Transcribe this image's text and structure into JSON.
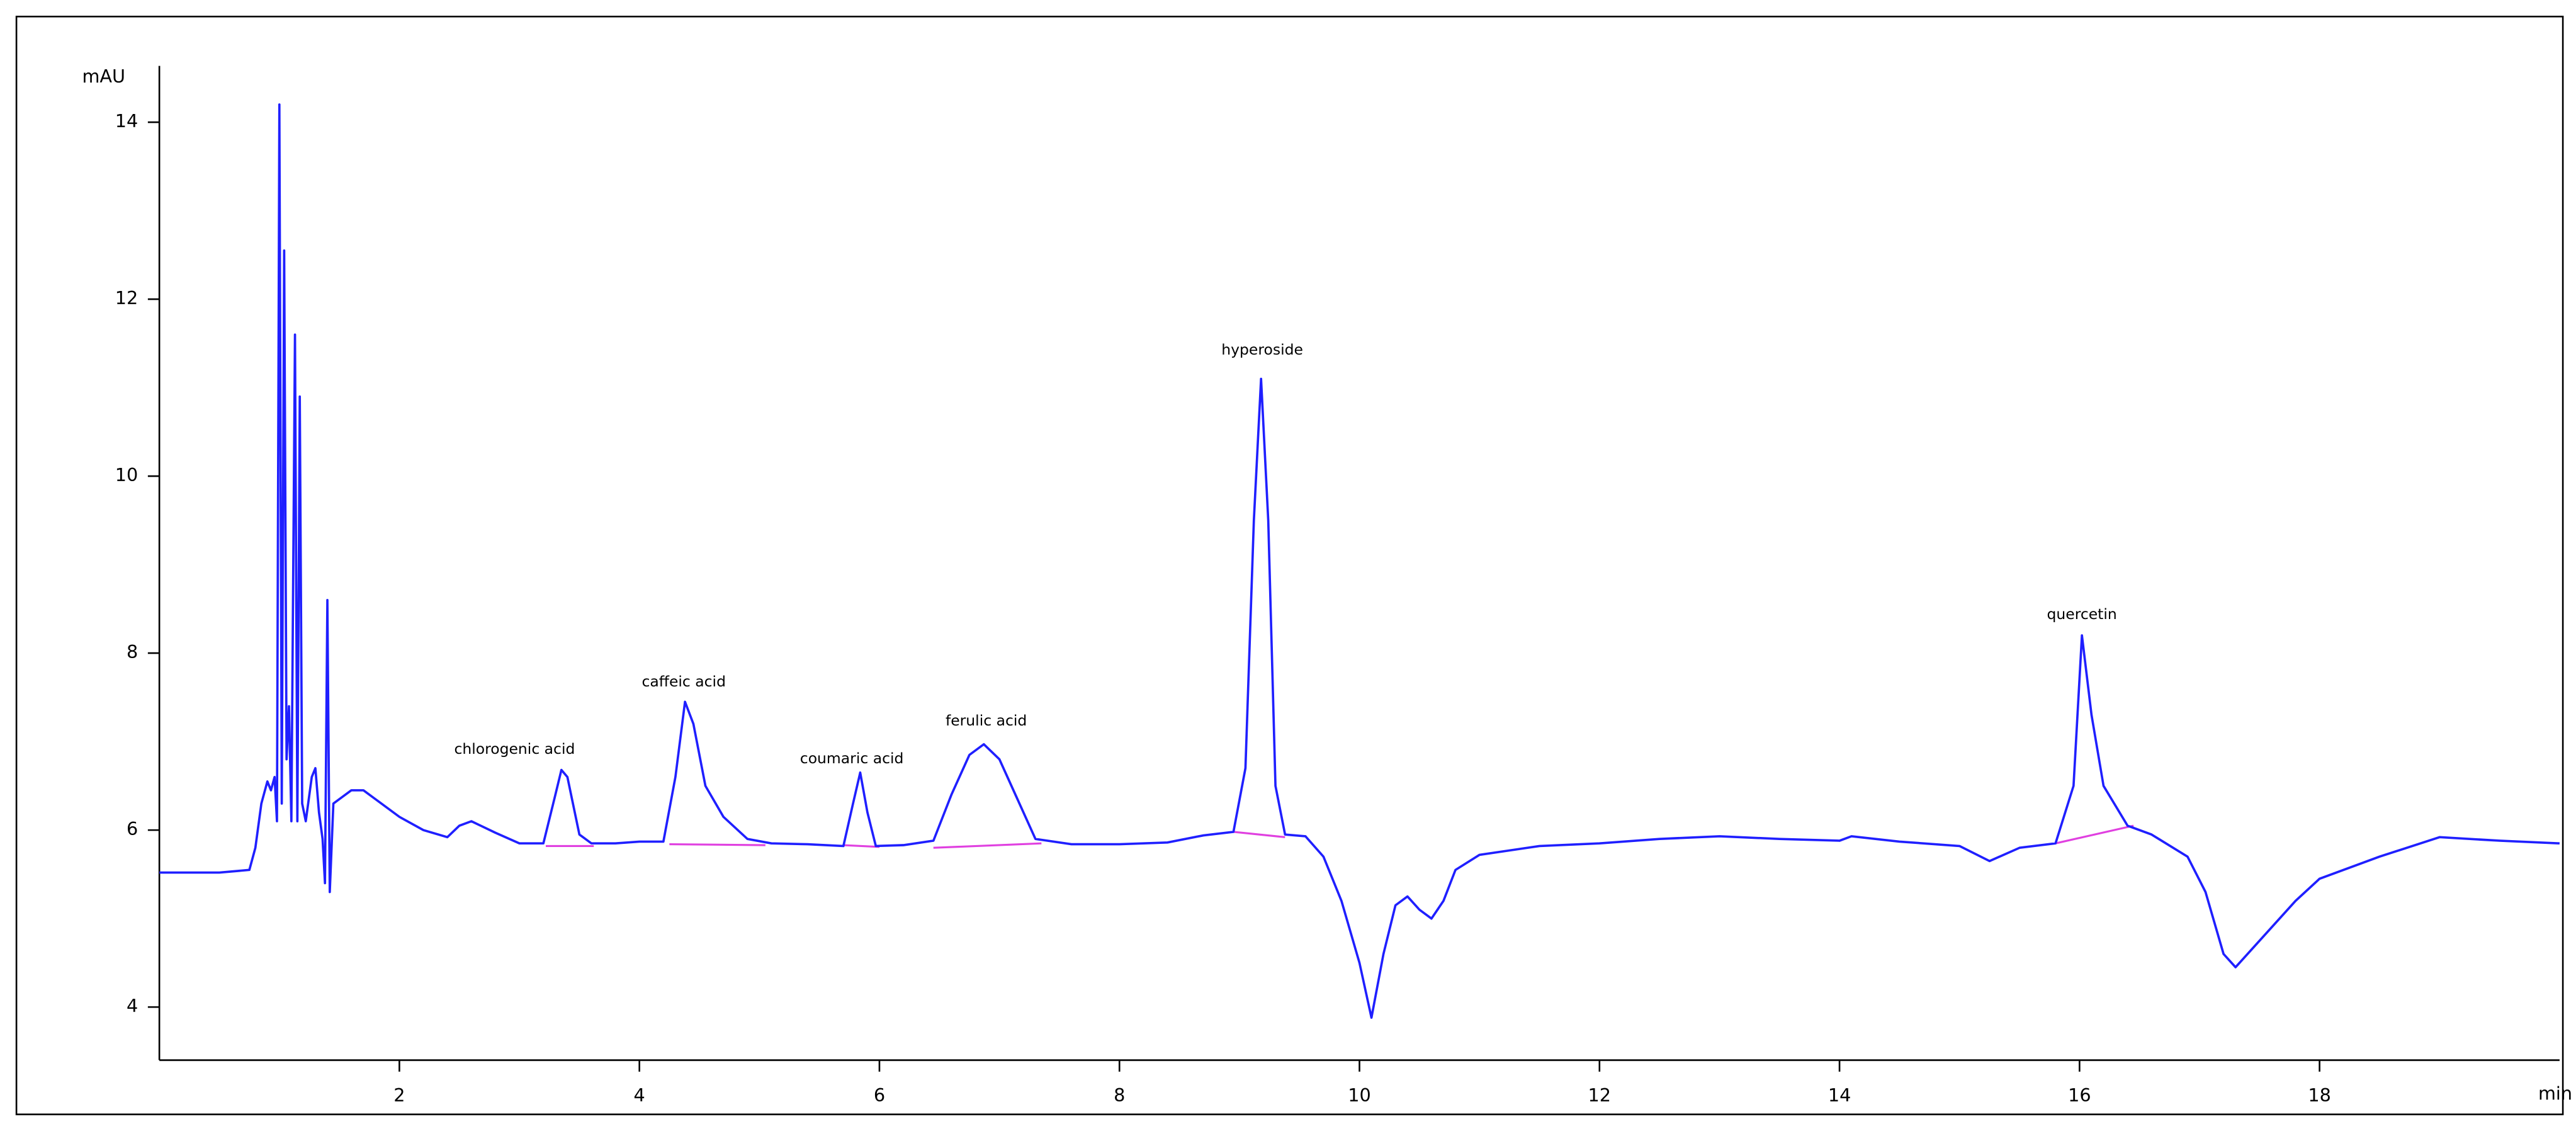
{
  "chart_data": {
    "type": "line",
    "y_label": "mAU",
    "x_label": "min",
    "color": "#1f1fff",
    "baseline_color": "#e040e0",
    "xlim": [
      0,
      20
    ],
    "ylim": [
      3.4,
      14.6
    ],
    "xticks": [
      2,
      4,
      6,
      8,
      10,
      12,
      14,
      16,
      18
    ],
    "yticks": [
      4,
      6,
      8,
      10,
      12,
      14
    ],
    "x": [
      0,
      0.5,
      0.75,
      0.8,
      0.85,
      0.9,
      0.93,
      0.96,
      0.98,
      1.0,
      1.02,
      1.04,
      1.06,
      1.08,
      1.1,
      1.13,
      1.15,
      1.17,
      1.19,
      1.22,
      1.27,
      1.3,
      1.33,
      1.36,
      1.38,
      1.4,
      1.42,
      1.45,
      1.5,
      1.6,
      1.7,
      1.8,
      2.0,
      2.2,
      2.4,
      2.5,
      2.6,
      2.8,
      3.0,
      3.2,
      3.3,
      3.35,
      3.4,
      3.5,
      3.6,
      3.8,
      4.0,
      4.2,
      4.3,
      4.38,
      4.45,
      4.55,
      4.7,
      4.9,
      5.1,
      5.4,
      5.7,
      5.78,
      5.84,
      5.9,
      5.97,
      6.2,
      6.45,
      6.6,
      6.75,
      6.87,
      7.0,
      7.15,
      7.3,
      7.6,
      8.0,
      8.4,
      8.7,
      8.95,
      9.05,
      9.12,
      9.18,
      9.24,
      9.3,
      9.38,
      9.55,
      9.7,
      9.85,
      10.0,
      10.1,
      10.2,
      10.3,
      10.4,
      10.5,
      10.6,
      10.7,
      10.8,
      11.0,
      11.5,
      12.0,
      12.5,
      13.0,
      13.5,
      14.0,
      14.1,
      14.5,
      15.0,
      15.25,
      15.5,
      15.8,
      15.95,
      16.02,
      16.1,
      16.2,
      16.4,
      16.6,
      16.9,
      17.05,
      17.2,
      17.3,
      17.5,
      17.8,
      18.0,
      18.5,
      19.0,
      19.5,
      20.0
    ],
    "values": [
      5.52,
      5.52,
      5.55,
      5.8,
      6.3,
      6.55,
      6.45,
      6.6,
      6.1,
      14.2,
      6.3,
      12.55,
      6.8,
      7.4,
      6.1,
      11.6,
      6.1,
      10.9,
      6.3,
      6.1,
      6.6,
      6.7,
      6.2,
      5.9,
      5.4,
      8.6,
      5.3,
      6.3,
      6.35,
      6.45,
      6.45,
      6.35,
      6.15,
      6.0,
      5.92,
      6.05,
      6.1,
      5.97,
      5.85,
      5.85,
      6.4,
      6.68,
      6.6,
      5.95,
      5.85,
      5.85,
      5.87,
      5.87,
      6.6,
      7.45,
      7.2,
      6.5,
      6.15,
      5.9,
      5.85,
      5.84,
      5.82,
      6.3,
      6.65,
      6.2,
      5.82,
      5.83,
      5.88,
      6.4,
      6.85,
      6.97,
      6.8,
      6.35,
      5.9,
      5.84,
      5.84,
      5.86,
      5.94,
      5.98,
      6.7,
      9.5,
      11.1,
      9.5,
      6.5,
      5.95,
      5.93,
      5.7,
      5.2,
      4.5,
      3.88,
      4.6,
      5.15,
      5.25,
      5.1,
      5.0,
      5.2,
      5.55,
      5.72,
      5.82,
      5.85,
      5.9,
      5.93,
      5.9,
      5.88,
      5.93,
      5.87,
      5.82,
      5.65,
      5.8,
      5.85,
      6.5,
      8.2,
      7.3,
      6.5,
      6.05,
      5.95,
      5.7,
      5.3,
      4.6,
      4.45,
      4.75,
      5.2,
      5.45,
      5.7,
      5.92,
      5.88,
      5.85
    ],
    "baselines": [
      {
        "x": [
          3.22,
          3.62
        ],
        "y": [
          5.82,
          5.82
        ]
      },
      {
        "x": [
          4.25,
          5.05
        ],
        "y": [
          5.84,
          5.83
        ]
      },
      {
        "x": [
          5.7,
          6.0
        ],
        "y": [
          5.83,
          5.81
        ]
      },
      {
        "x": [
          6.45,
          7.35
        ],
        "y": [
          5.8,
          5.85
        ]
      },
      {
        "x": [
          8.95,
          9.38
        ],
        "y": [
          5.98,
          5.92
        ]
      },
      {
        "x": [
          15.8,
          16.45
        ],
        "y": [
          5.85,
          6.05
        ]
      }
    ],
    "annotations": [
      {
        "text": "chlorogenic acid",
        "x": 2.96,
        "y": 6.91
      },
      {
        "text": "caffeic acid",
        "x": 4.37,
        "y": 7.67
      },
      {
        "text": "coumaric acid",
        "x": 5.77,
        "y": 6.8
      },
      {
        "text": "ferulic acid",
        "x": 6.89,
        "y": 7.23
      },
      {
        "text": "hyperoside",
        "x": 9.19,
        "y": 11.42
      },
      {
        "text": "quercetin",
        "x": 16.02,
        "y": 8.43
      }
    ]
  }
}
